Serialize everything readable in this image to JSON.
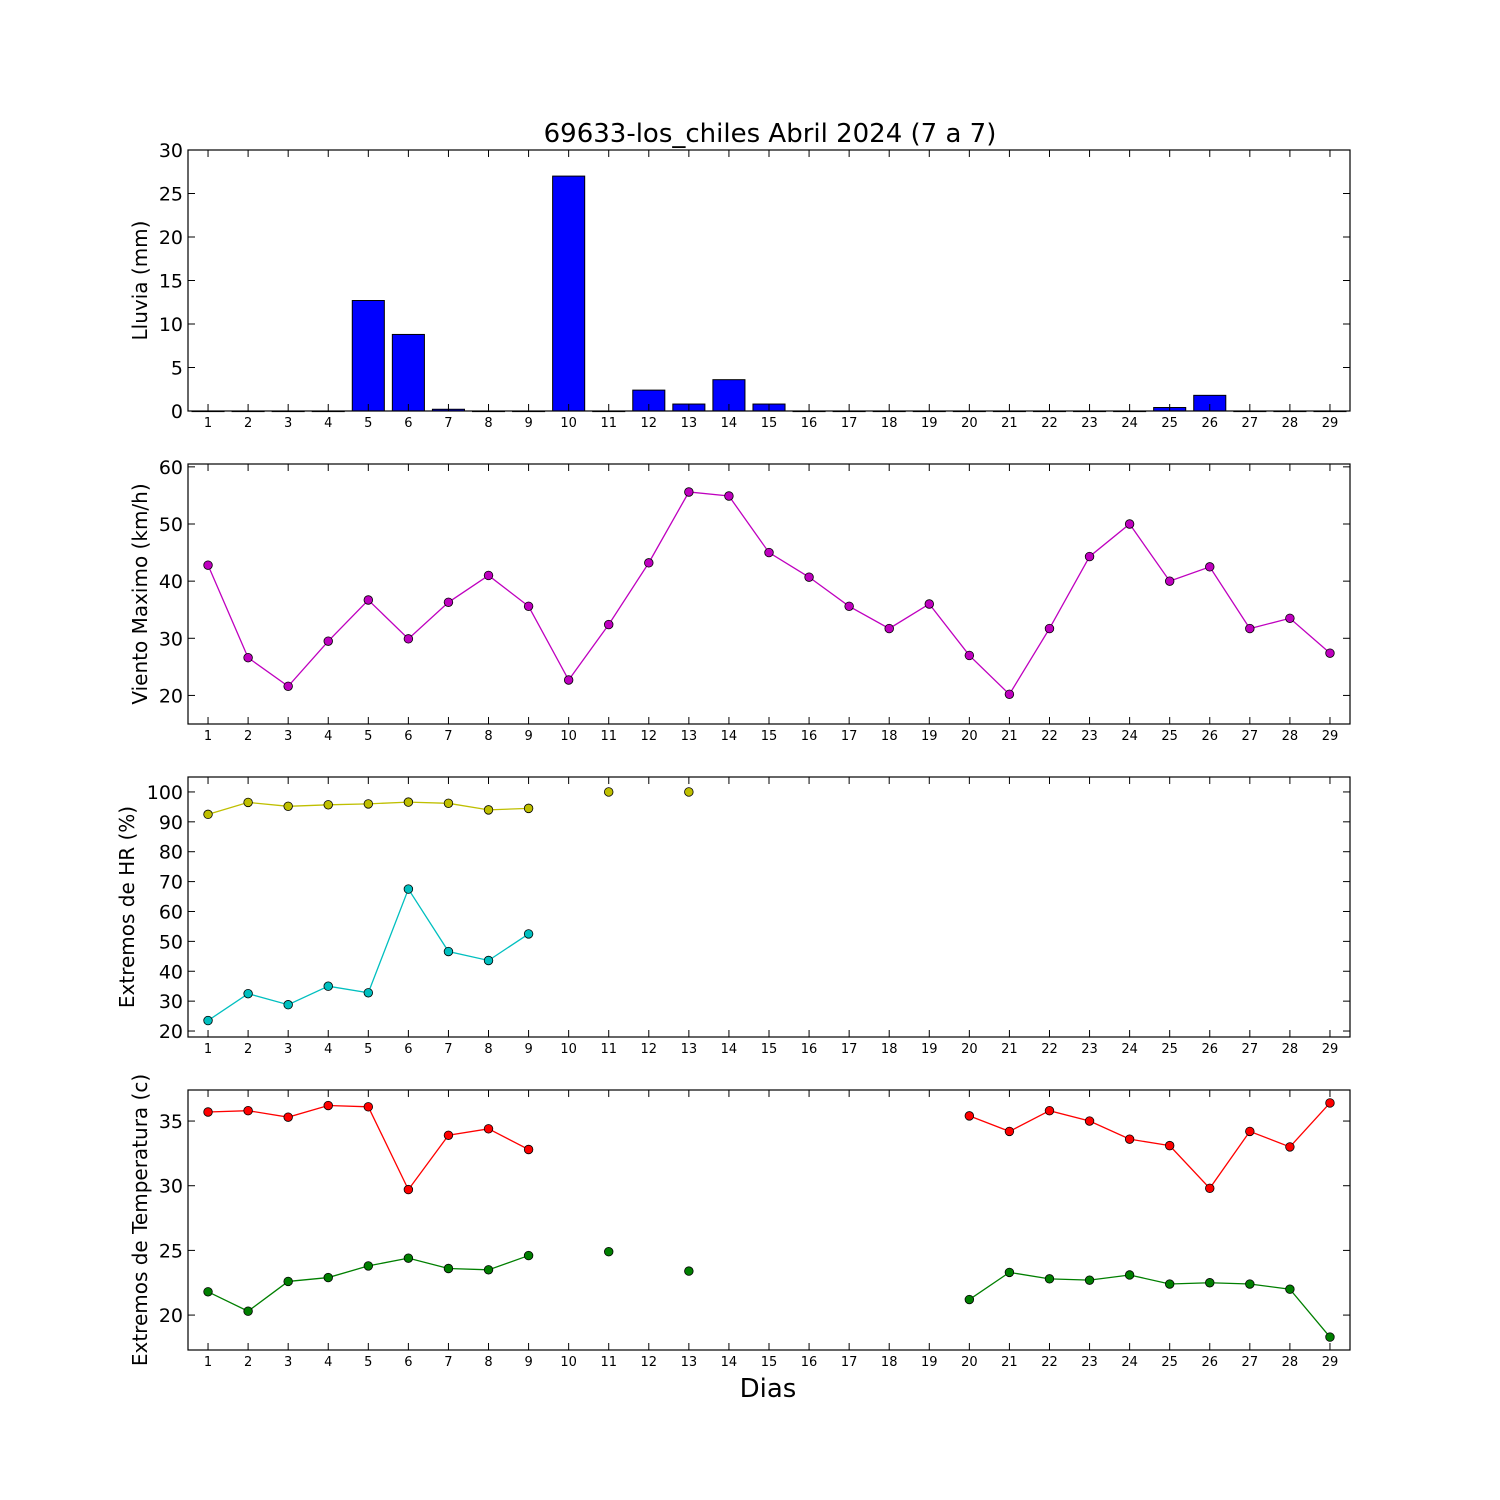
{
  "title": "69633-los_chiles Abril 2024  (7 a 7)",
  "xlabel": "Dias",
  "chart_data": [
    {
      "type": "bar",
      "ylabel": "Lluvia (mm)",
      "ylim": [
        0,
        30
      ],
      "yticks": [
        0,
        5,
        10,
        15,
        20,
        25,
        30
      ],
      "xlim": [
        0.5,
        29.5
      ],
      "x": [
        1,
        2,
        3,
        4,
        5,
        6,
        7,
        8,
        9,
        10,
        11,
        12,
        13,
        14,
        15,
        16,
        17,
        18,
        19,
        20,
        21,
        22,
        23,
        24,
        25,
        26,
        27,
        28,
        29
      ],
      "series": [
        {
          "color": "#0000ff",
          "values": [
            0,
            0,
            0,
            0,
            12.7,
            8.8,
            0.2,
            0,
            0,
            27.0,
            0,
            2.4,
            0.8,
            3.6,
            0.8,
            0,
            0,
            0,
            0,
            0,
            0,
            0,
            0,
            0,
            0.4,
            1.8,
            0,
            0,
            0
          ]
        }
      ]
    },
    {
      "type": "line",
      "ylabel": "Viento Maximo (km/h)",
      "ylim": [
        15,
        60.5
      ],
      "yticks": [
        20,
        30,
        40,
        50,
        60
      ],
      "xlim": [
        0.5,
        29.5
      ],
      "x": [
        1,
        2,
        3,
        4,
        5,
        6,
        7,
        8,
        9,
        10,
        11,
        12,
        13,
        14,
        15,
        16,
        17,
        18,
        19,
        20,
        21,
        22,
        23,
        24,
        25,
        26,
        27,
        28,
        29
      ],
      "series": [
        {
          "color": "#bf00bf",
          "values": [
            42.8,
            26.6,
            21.6,
            29.5,
            36.7,
            29.9,
            36.3,
            41.0,
            35.6,
            22.7,
            32.4,
            43.2,
            55.6,
            54.9,
            45.0,
            40.7,
            35.6,
            31.7,
            36.0,
            27.0,
            20.2,
            31.7,
            44.3,
            50.0,
            40.0,
            42.5,
            31.7,
            33.5,
            27.4
          ]
        }
      ]
    },
    {
      "type": "line",
      "ylabel": "Extremos de HR (%)",
      "ylim": [
        18,
        105
      ],
      "yticks": [
        20,
        30,
        40,
        50,
        60,
        70,
        80,
        90,
        100
      ],
      "xlim": [
        0.5,
        29.5
      ],
      "x": [
        1,
        2,
        3,
        4,
        5,
        6,
        7,
        8,
        9,
        10,
        11,
        12,
        13,
        14,
        15,
        16,
        17,
        18,
        19,
        20,
        21,
        22,
        23,
        24,
        25,
        26,
        27,
        28,
        29
      ],
      "series": [
        {
          "color": "#bfbf00",
          "values": [
            92.5,
            96.5,
            95.2,
            95.7,
            96.0,
            96.6,
            96.2,
            94.0,
            94.5,
            null,
            100,
            null,
            100,
            null,
            null,
            null,
            null,
            null,
            null,
            null,
            null,
            null,
            null,
            null,
            null,
            null,
            null,
            null,
            null
          ]
        },
        {
          "color": "#00bfbf",
          "values": [
            23.5,
            32.5,
            28.8,
            35.0,
            32.8,
            67.5,
            46.6,
            43.6,
            52.5,
            null,
            null,
            null,
            null,
            null,
            null,
            null,
            null,
            null,
            null,
            null,
            null,
            null,
            null,
            null,
            null,
            null,
            null,
            null,
            null
          ]
        }
      ]
    },
    {
      "type": "line",
      "ylabel": "Extremos de Temperatura (c)",
      "ylim": [
        17.3,
        37.4
      ],
      "yticks": [
        20,
        25,
        30,
        35
      ],
      "xlim": [
        0.5,
        29.5
      ],
      "x": [
        1,
        2,
        3,
        4,
        5,
        6,
        7,
        8,
        9,
        10,
        11,
        12,
        13,
        14,
        15,
        16,
        17,
        18,
        19,
        20,
        21,
        22,
        23,
        24,
        25,
        26,
        27,
        28,
        29
      ],
      "series": [
        {
          "color": "#ff0000",
          "values": [
            35.7,
            35.8,
            35.3,
            36.2,
            36.1,
            29.7,
            33.9,
            34.4,
            32.8,
            null,
            null,
            null,
            null,
            null,
            null,
            null,
            null,
            null,
            null,
            35.4,
            34.2,
            35.8,
            35.0,
            33.6,
            33.1,
            29.8,
            34.2,
            33.0,
            36.4
          ]
        },
        {
          "color": "#007f00",
          "values": [
            21.8,
            20.3,
            22.6,
            22.9,
            23.8,
            24.4,
            23.6,
            23.5,
            24.6,
            null,
            24.9,
            null,
            23.4,
            null,
            null,
            null,
            null,
            null,
            null,
            21.2,
            23.3,
            22.8,
            22.7,
            23.1,
            22.4,
            22.5,
            22.4,
            22.0,
            18.3
          ]
        }
      ]
    }
  ]
}
